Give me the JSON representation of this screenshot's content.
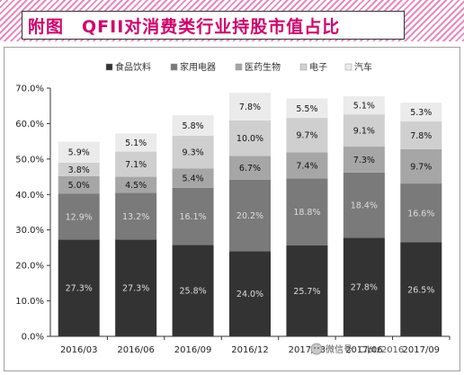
{
  "header": {
    "title": "附图　QFII对消费类行业持股市值占比",
    "title_color": "#d4006a",
    "hatch_color": "#e889c0"
  },
  "watermark": {
    "icon": "wechat-icon",
    "text": "微信号: Cibtz2016"
  },
  "chart_data": {
    "type": "bar",
    "stacked": true,
    "categories": [
      "2016/03",
      "2016/06",
      "2016/09",
      "2016/12",
      "2017/03",
      "2017/06",
      "2017/09"
    ],
    "series": [
      {
        "name": "食品饮料",
        "color": "#333333",
        "values": [
          27.3,
          27.3,
          25.8,
          24.0,
          25.7,
          27.8,
          26.5
        ]
      },
      {
        "name": "家用电器",
        "color": "#7a7a7a",
        "values": [
          12.9,
          13.2,
          16.1,
          20.2,
          18.8,
          18.4,
          16.6
        ]
      },
      {
        "name": "医药生物",
        "color": "#a6a6a6",
        "values": [
          5.0,
          4.5,
          5.4,
          6.7,
          7.4,
          7.3,
          9.7
        ]
      },
      {
        "name": "电子",
        "color": "#cfcfcf",
        "values": [
          3.8,
          7.1,
          9.3,
          10.0,
          9.7,
          9.1,
          7.8
        ]
      },
      {
        "name": "汽车",
        "color": "#ebebeb",
        "values": [
          5.9,
          5.1,
          5.8,
          7.8,
          5.5,
          5.1,
          5.3
        ]
      }
    ],
    "y_ticks": [
      "0.0%",
      "10.0%",
      "20.0%",
      "30.0%",
      "40.0%",
      "50.0%",
      "60.0%",
      "70.0%"
    ],
    "ylim": [
      0,
      70
    ],
    "legend_position": "top",
    "grid": false
  }
}
